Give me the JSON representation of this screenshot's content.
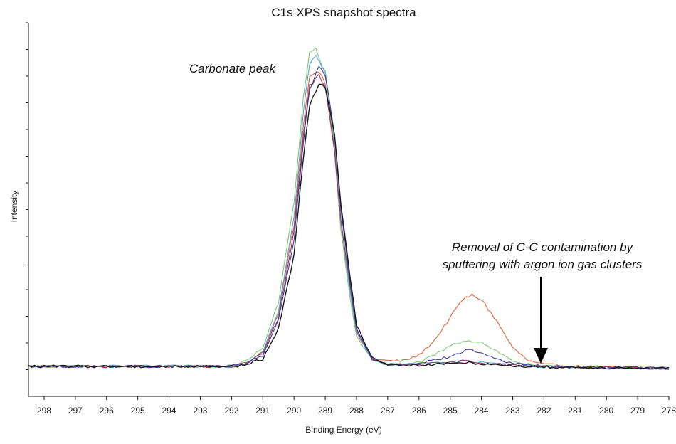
{
  "chart_data": {
    "type": "line",
    "title": "C1s XPS snapshot spectra",
    "xlabel": "Binding Energy (eV)",
    "ylabel": "Intensity",
    "xlim": [
      298.5,
      278
    ],
    "ylim": [
      0,
      100
    ],
    "x_reversed": true,
    "x_ticks": [
      298,
      297,
      296,
      295,
      294,
      293,
      292,
      291,
      290,
      289,
      288,
      287,
      286,
      285,
      284,
      283,
      282,
      281,
      280,
      279,
      278
    ],
    "y_tick_labels_shown": false,
    "grid": false,
    "legend": "none",
    "annotations": [
      {
        "name": "carbonate-peak",
        "text": "Carbonate peak",
        "x": 292.2,
        "y": 83
      },
      {
        "name": "removal",
        "lines": [
          "Removal of C-C contamination by",
          "sputtering with argon ion gas clusters"
        ],
        "x": 282.2,
        "y": 37,
        "arrow_to": [
          282,
          8
        ]
      }
    ],
    "series": [
      {
        "color": "#e0603a",
        "values": [
          [
            298.5,
            8.0
          ],
          [
            292,
            8.0
          ],
          [
            291.5,
            9.0
          ],
          [
            291,
            12
          ],
          [
            290.5,
            22
          ],
          [
            290,
            46
          ],
          [
            289.7,
            72
          ],
          [
            289.5,
            86
          ],
          [
            289.2,
            87
          ],
          [
            289,
            84
          ],
          [
            288.7,
            65
          ],
          [
            288.5,
            45
          ],
          [
            288.2,
            28
          ],
          [
            288,
            17
          ],
          [
            287.5,
            10
          ],
          [
            287,
            9.5
          ],
          [
            286.5,
            9.5
          ],
          [
            286,
            11
          ],
          [
            285.5,
            15
          ],
          [
            285,
            21
          ],
          [
            284.6,
            26
          ],
          [
            284.3,
            27
          ],
          [
            284,
            26
          ],
          [
            283.5,
            20
          ],
          [
            283,
            13
          ],
          [
            282.5,
            9.5
          ],
          [
            282,
            8.5
          ],
          [
            281,
            8.0
          ],
          [
            278,
            7.5
          ]
        ]
      },
      {
        "color": "#7ec876",
        "values": [
          [
            298.5,
            8.0
          ],
          [
            292,
            8.0
          ],
          [
            291.5,
            9.5
          ],
          [
            291,
            13
          ],
          [
            290.5,
            25
          ],
          [
            290,
            52
          ],
          [
            289.7,
            80
          ],
          [
            289.5,
            92
          ],
          [
            289.3,
            93
          ],
          [
            289,
            86
          ],
          [
            288.7,
            66
          ],
          [
            288.5,
            45
          ],
          [
            288.2,
            26
          ],
          [
            288,
            16
          ],
          [
            287.5,
            10
          ],
          [
            287,
            8.5
          ],
          [
            286.5,
            8.5
          ],
          [
            286,
            9.0
          ],
          [
            285.5,
            11
          ],
          [
            285,
            13.5
          ],
          [
            284.5,
            15
          ],
          [
            284,
            14.5
          ],
          [
            283.5,
            12
          ],
          [
            283,
            9.5
          ],
          [
            282.5,
            8.5
          ],
          [
            282,
            8.0
          ],
          [
            281,
            8.0
          ],
          [
            278,
            7.5
          ]
        ]
      },
      {
        "color": "#5aa6d6",
        "values": [
          [
            298.5,
            8.0
          ],
          [
            292,
            8.0
          ],
          [
            291.5,
            9.0
          ],
          [
            291,
            12
          ],
          [
            290.5,
            23
          ],
          [
            290,
            48
          ],
          [
            289.7,
            76
          ],
          [
            289.5,
            89
          ],
          [
            289.3,
            91
          ],
          [
            289,
            87
          ],
          [
            288.7,
            68
          ],
          [
            288.5,
            47
          ],
          [
            288.2,
            28
          ],
          [
            288,
            17
          ],
          [
            287.5,
            10
          ],
          [
            287,
            8.5
          ],
          [
            286,
            8.5
          ],
          [
            285,
            9.0
          ],
          [
            284.5,
            9.5
          ],
          [
            284,
            9.0
          ],
          [
            283,
            8.3
          ],
          [
            282,
            8.0
          ],
          [
            281,
            7.8
          ],
          [
            278,
            7.5
          ]
        ]
      },
      {
        "color": "#8a3a6a",
        "values": [
          [
            298.5,
            8.0
          ],
          [
            292,
            8.0
          ],
          [
            291.5,
            9.0
          ],
          [
            291,
            11.5
          ],
          [
            290.5,
            21
          ],
          [
            290,
            44
          ],
          [
            289.7,
            70
          ],
          [
            289.5,
            83
          ],
          [
            289.2,
            86
          ],
          [
            289,
            83
          ],
          [
            288.7,
            66
          ],
          [
            288.5,
            47
          ],
          [
            288.2,
            29
          ],
          [
            288,
            18
          ],
          [
            287.5,
            10
          ],
          [
            287,
            8.5
          ],
          [
            286,
            8.5
          ],
          [
            285,
            9.0
          ],
          [
            284.5,
            9.5
          ],
          [
            284,
            9.0
          ],
          [
            283,
            8.3
          ],
          [
            282,
            8.0
          ],
          [
            281,
            7.8
          ],
          [
            278,
            7.5
          ]
        ]
      },
      {
        "color": "#3c3c9c",
        "values": [
          [
            298.5,
            8.0
          ],
          [
            292,
            8.0
          ],
          [
            291.5,
            9.0
          ],
          [
            291,
            11
          ],
          [
            290.5,
            20
          ],
          [
            290,
            42
          ],
          [
            289.7,
            68
          ],
          [
            289.5,
            82
          ],
          [
            289.2,
            88
          ],
          [
            289,
            86
          ],
          [
            288.7,
            70
          ],
          [
            288.5,
            50
          ],
          [
            288.2,
            30
          ],
          [
            288,
            18
          ],
          [
            287.5,
            10
          ],
          [
            287,
            8.5
          ],
          [
            286,
            9.0
          ],
          [
            285,
            10.5
          ],
          [
            284.6,
            12
          ],
          [
            284.3,
            12.5
          ],
          [
            284,
            11.5
          ],
          [
            283.5,
            10
          ],
          [
            283,
            8.8
          ],
          [
            282,
            8.0
          ],
          [
            281,
            7.8
          ],
          [
            278,
            7.5
          ]
        ]
      },
      {
        "color": "#1a1a1a",
        "values": [
          [
            298.5,
            8.0
          ],
          [
            292,
            8.0
          ],
          [
            291.5,
            8.5
          ],
          [
            291,
            10
          ],
          [
            290.5,
            18
          ],
          [
            290,
            38
          ],
          [
            289.7,
            64
          ],
          [
            289.5,
            78
          ],
          [
            289.2,
            84
          ],
          [
            289,
            83
          ],
          [
            288.7,
            70
          ],
          [
            288.5,
            51
          ],
          [
            288.2,
            32
          ],
          [
            288,
            19
          ],
          [
            287.5,
            10.5
          ],
          [
            287,
            8.5
          ],
          [
            286,
            8.3
          ],
          [
            285,
            8.8
          ],
          [
            284.5,
            9.0
          ],
          [
            284,
            8.8
          ],
          [
            283,
            8.2
          ],
          [
            282,
            7.8
          ],
          [
            281,
            7.8
          ],
          [
            278,
            7.5
          ]
        ]
      }
    ]
  }
}
